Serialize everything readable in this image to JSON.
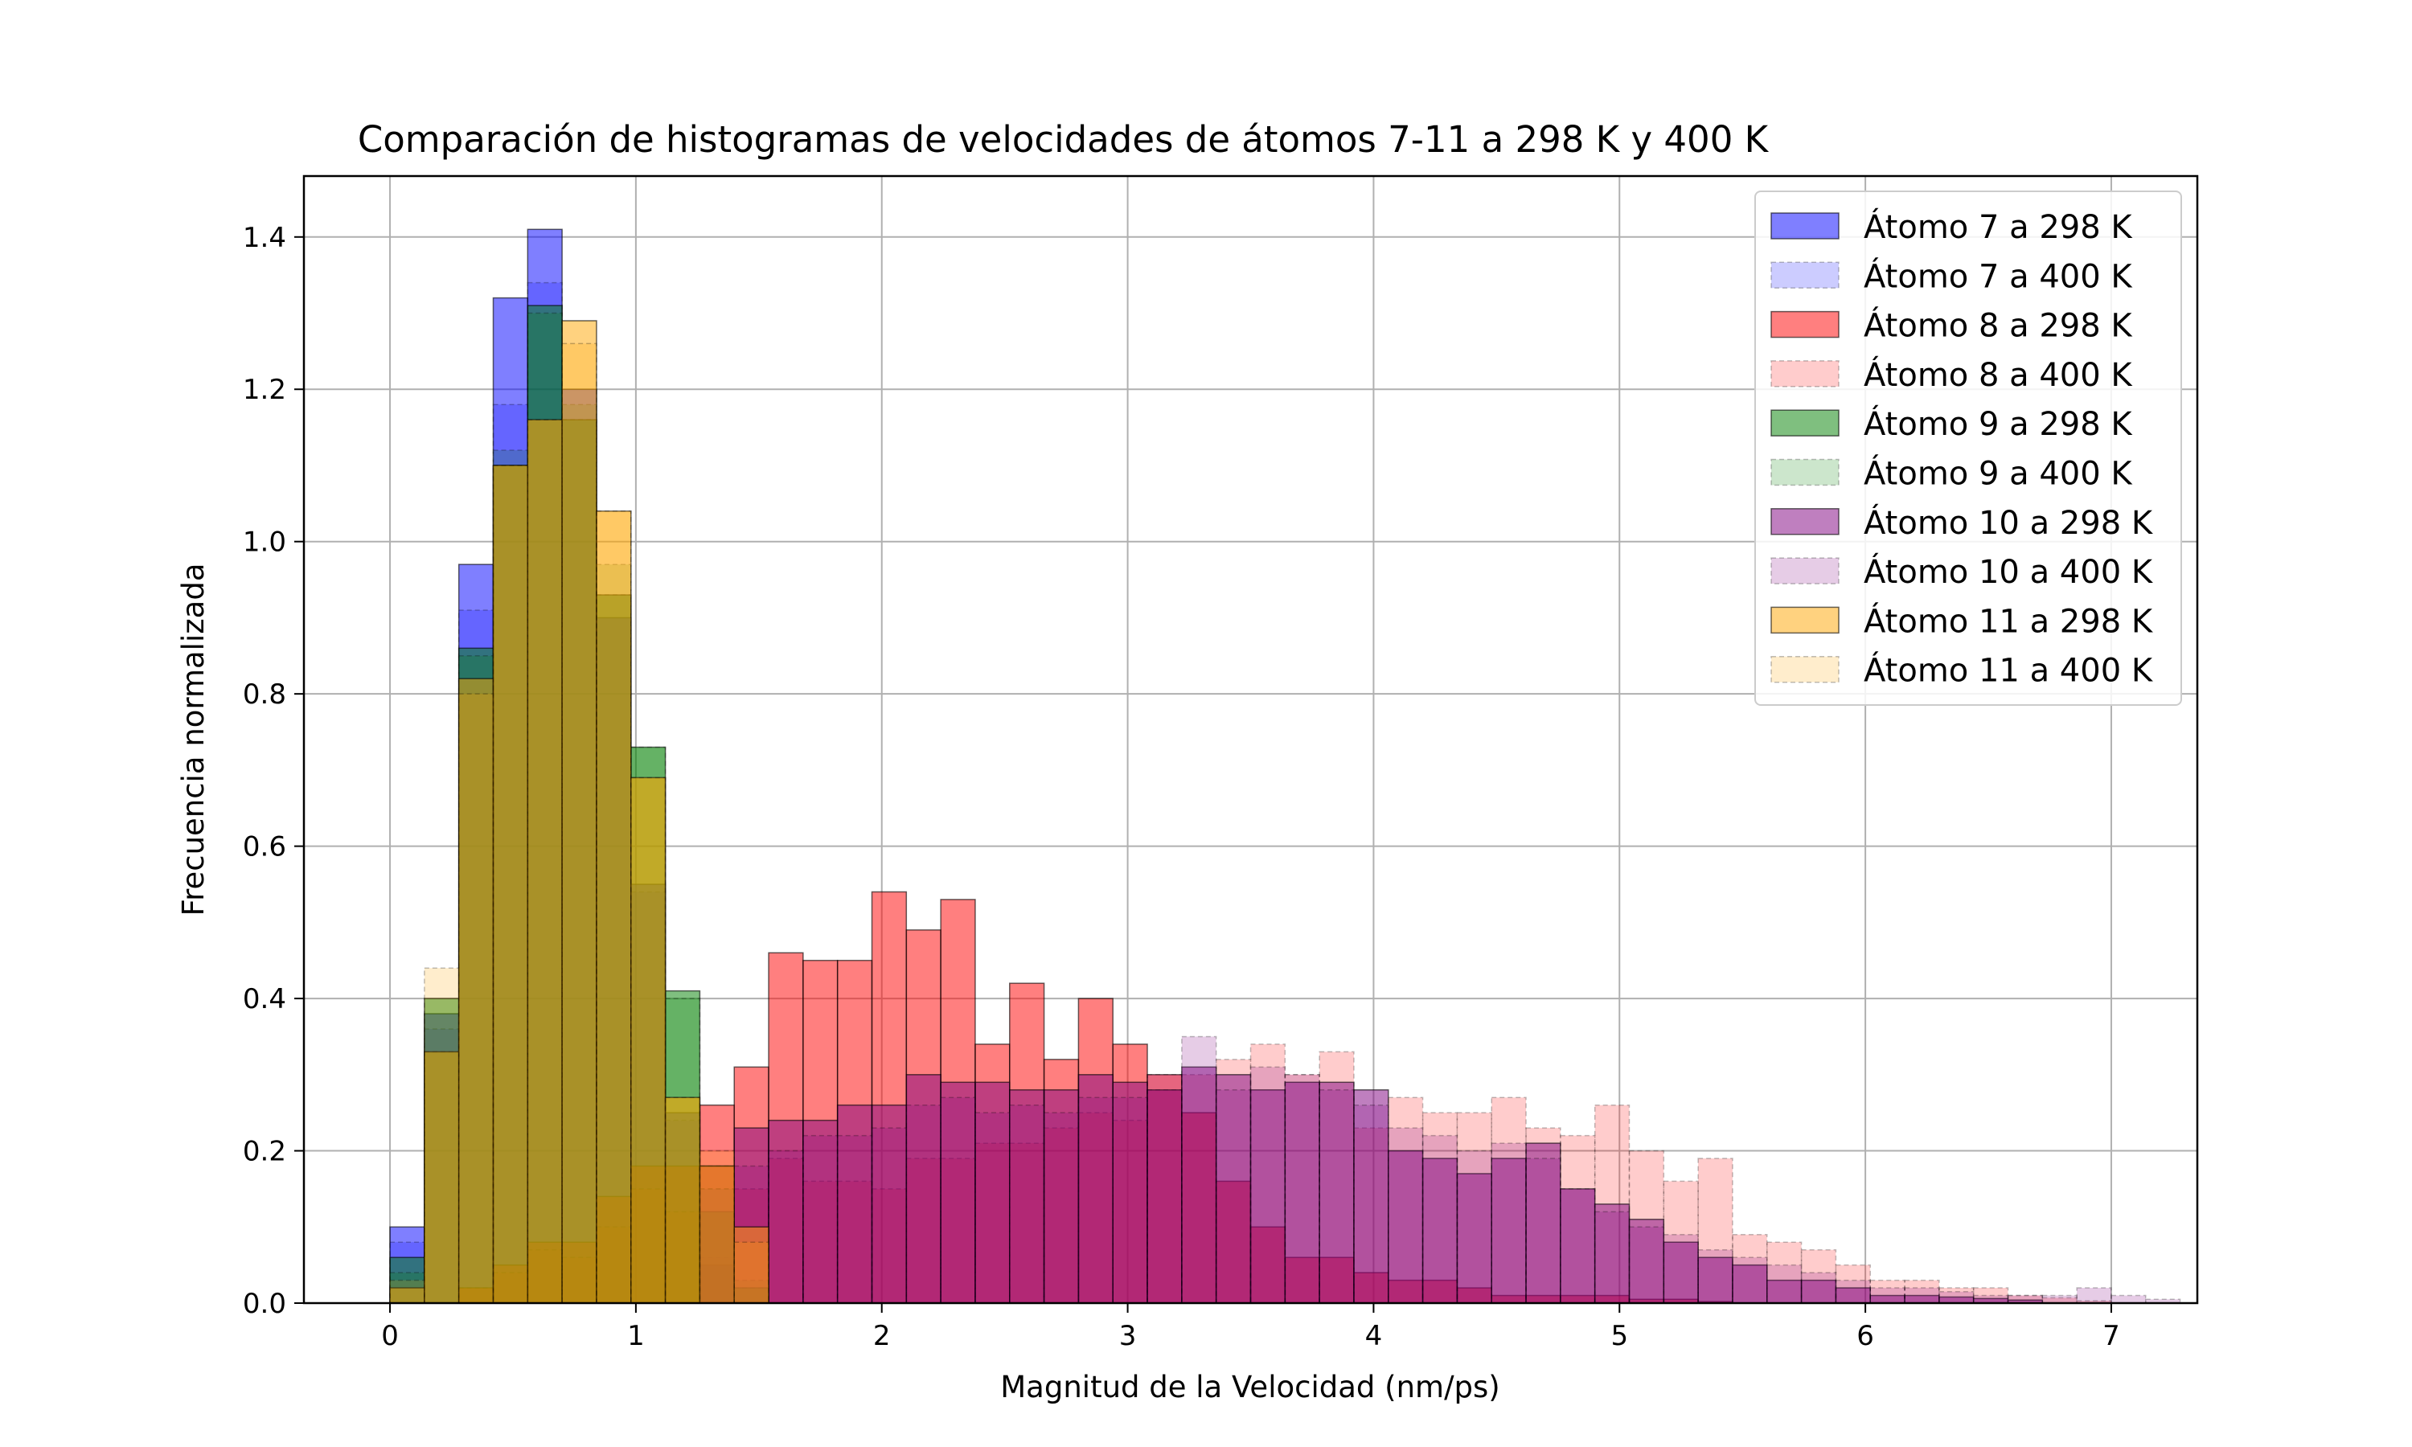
{
  "chart_data": {
    "type": "bar",
    "title": "Comparación de histogramas de velocidades de átomos 7-11 a 298 K y 400 K",
    "xlabel": "Magnitud de la Velocidad (nm/ps)",
    "ylabel": "Frecuencia normalizada",
    "xlim": [
      -0.35,
      7.35
    ],
    "ylim": [
      0,
      1.48
    ],
    "xticks": [
      "0",
      "1",
      "2",
      "3",
      "4",
      "5",
      "6",
      "7"
    ],
    "yticks": [
      "0.0",
      "0.2",
      "0.4",
      "0.6",
      "0.8",
      "1.0",
      "1.2",
      "1.4"
    ],
    "grid": true,
    "legend_position": "top-right",
    "bin_start": 0,
    "bin_width": 0.14,
    "series": [
      {
        "name": "Átomo 7 a 298 K",
        "color": "#0000ff",
        "alpha": 0.5,
        "style": "solid",
        "values": [
          0.1,
          0.38,
          0.97,
          1.32,
          1.41,
          1.2,
          0.9,
          0.55,
          0.25,
          0.05
        ]
      },
      {
        "name": "Átomo 7 a 400 K",
        "color": "#0000ff",
        "alpha": 0.2,
        "style": "dashed",
        "values": [
          0.08,
          0.36,
          0.91,
          1.18,
          1.34,
          1.16,
          0.93,
          0.54,
          0.24,
          0.06,
          0.02
        ]
      },
      {
        "name": "Átomo 8 a 298 K",
        "color": "#ff0000",
        "alpha": 0.5,
        "style": "solid",
        "values": [
          0.0,
          0.0,
          0.02,
          0.05,
          0.08,
          0.08,
          0.14,
          0.18,
          0.18,
          0.26,
          0.31,
          0.46,
          0.45,
          0.45,
          0.54,
          0.49,
          0.53,
          0.34,
          0.42,
          0.32,
          0.4,
          0.34,
          0.3,
          0.25,
          0.16,
          0.1,
          0.06,
          0.06,
          0.04,
          0.03,
          0.03,
          0.02,
          0.01,
          0.01,
          0.01,
          0.01,
          0.005,
          0.005,
          0.002
        ]
      },
      {
        "name": "Átomo 8 a 400 K",
        "color": "#ff0000",
        "alpha": 0.2,
        "style": "dashed",
        "values": [
          0.0,
          0.0,
          0.02,
          0.04,
          0.07,
          0.06,
          0.1,
          0.15,
          0.12,
          0.18,
          0.15,
          0.19,
          0.16,
          0.16,
          0.15,
          0.19,
          0.19,
          0.21,
          0.21,
          0.23,
          0.25,
          0.24,
          0.28,
          0.3,
          0.32,
          0.34,
          0.3,
          0.33,
          0.23,
          0.27,
          0.25,
          0.25,
          0.27,
          0.23,
          0.22,
          0.26,
          0.2,
          0.16,
          0.19,
          0.09,
          0.08,
          0.07,
          0.05,
          0.03,
          0.03,
          0.02,
          0.02,
          0.01,
          0.007,
          0.003
        ]
      },
      {
        "name": "Átomo 9 a 298 K",
        "color": "#008000",
        "alpha": 0.5,
        "style": "solid",
        "values": [
          0.06,
          0.4,
          0.86,
          1.1,
          1.31,
          1.16,
          0.93,
          0.73,
          0.41,
          0.12,
          0.02
        ]
      },
      {
        "name": "Átomo 9 a 400 K",
        "color": "#008000",
        "alpha": 0.2,
        "style": "dashed",
        "values": [
          0.04,
          0.33,
          0.85,
          1.12,
          1.3,
          1.18,
          0.97,
          0.73,
          0.4,
          0.15,
          0.03
        ]
      },
      {
        "name": "Átomo 10 a 298 K",
        "color": "#800080",
        "alpha": 0.5,
        "style": "solid",
        "values": [
          0.0,
          0.0,
          0.0,
          0.0,
          0.0,
          0.0,
          0.0,
          0.0,
          0.0,
          0.18,
          0.23,
          0.24,
          0.24,
          0.26,
          0.26,
          0.3,
          0.29,
          0.29,
          0.28,
          0.28,
          0.3,
          0.29,
          0.28,
          0.31,
          0.3,
          0.28,
          0.29,
          0.29,
          0.28,
          0.2,
          0.19,
          0.17,
          0.19,
          0.21,
          0.15,
          0.13,
          0.11,
          0.08,
          0.06,
          0.05,
          0.03,
          0.03,
          0.02,
          0.01,
          0.01,
          0.008,
          0.006,
          0.004
        ]
      },
      {
        "name": "Átomo 10 a 400 K",
        "color": "#800080",
        "alpha": 0.2,
        "style": "dashed",
        "values": [
          0.0,
          0.0,
          0.0,
          0.0,
          0.0,
          0.0,
          0.0,
          0.0,
          0.0,
          0.15,
          0.18,
          0.2,
          0.22,
          0.22,
          0.23,
          0.26,
          0.27,
          0.25,
          0.26,
          0.25,
          0.27,
          0.27,
          0.3,
          0.35,
          0.28,
          0.31,
          0.3,
          0.28,
          0.26,
          0.23,
          0.22,
          0.2,
          0.21,
          0.19,
          0.15,
          0.12,
          0.1,
          0.09,
          0.07,
          0.06,
          0.05,
          0.04,
          0.03,
          0.02,
          0.02,
          0.015,
          0.01,
          0.01,
          0.01,
          0.02,
          0.01,
          0.005
        ]
      },
      {
        "name": "Átomo 11 a 298 K",
        "color": "#ffa500",
        "alpha": 0.5,
        "style": "solid",
        "values": [
          0.02,
          0.33,
          0.82,
          1.1,
          1.16,
          1.29,
          1.04,
          0.69,
          0.27,
          0.18,
          0.1
        ]
      },
      {
        "name": "Átomo 11 a 400 K",
        "color": "#ffa500",
        "alpha": 0.2,
        "style": "dashed",
        "values": [
          0.03,
          0.44,
          0.8,
          1.1,
          1.16,
          1.26,
          1.04,
          0.69,
          0.27,
          0.2,
          0.08
        ]
      }
    ]
  }
}
